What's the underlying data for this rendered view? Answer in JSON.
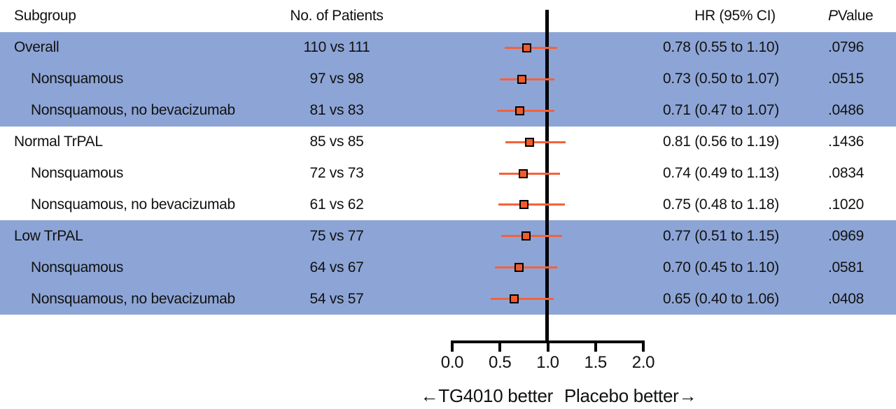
{
  "colors": {
    "band": "#8da5d6",
    "marker_fill": "#f15a29",
    "marker_border": "#000000",
    "ci_line": "#f3623a",
    "axis": "#000000",
    "text": "#111111"
  },
  "header": {
    "subgroup": "Subgroup",
    "patients": "No. of Patients",
    "hr": "HR (95% CI)",
    "p_italic": "P",
    "p_rest": " Value"
  },
  "chart_data": {
    "type": "forest",
    "title": "",
    "xlabel": "",
    "xlim": [
      0.0,
      2.0
    ],
    "reference_line": 1.0,
    "grid": false,
    "axis": {
      "ticks": [
        "0.0",
        "0.5",
        "1.0",
        "1.5",
        "2.0"
      ],
      "left_direction_label": "←TG4010 better",
      "right_direction_label": "Placebo better→"
    },
    "rows": [
      {
        "label": "Overall",
        "indent": false,
        "shaded": true,
        "patients": "110 vs 111",
        "hr": 0.78,
        "ci_low": 0.55,
        "ci_high": 1.1,
        "hr_text": "0.78 (0.55 to 1.10)",
        "p_value": ".0796"
      },
      {
        "label": "Nonsquamous",
        "indent": true,
        "shaded": true,
        "patients": "97 vs 98",
        "hr": 0.73,
        "ci_low": 0.5,
        "ci_high": 1.07,
        "hr_text": "0.73 (0.50 to 1.07)",
        "p_value": ".0515"
      },
      {
        "label": "Nonsquamous, no bevacizumab",
        "indent": true,
        "shaded": true,
        "patients": "81 vs 83",
        "hr": 0.71,
        "ci_low": 0.47,
        "ci_high": 1.07,
        "hr_text": "0.71 (0.47 to 1.07)",
        "p_value": ".0486"
      },
      {
        "label": "Normal TrPAL",
        "indent": false,
        "shaded": false,
        "patients": "85 vs 85",
        "hr": 0.81,
        "ci_low": 0.56,
        "ci_high": 1.19,
        "hr_text": "0.81 (0.56 to 1.19)",
        "p_value": ".1436"
      },
      {
        "label": "Nonsquamous",
        "indent": true,
        "shaded": false,
        "patients": "72 vs 73",
        "hr": 0.74,
        "ci_low": 0.49,
        "ci_high": 1.13,
        "hr_text": "0.74 (0.49 to 1.13)",
        "p_value": ".0834"
      },
      {
        "label": "Nonsquamous, no bevacizumab",
        "indent": true,
        "shaded": false,
        "patients": "61 vs 62",
        "hr": 0.75,
        "ci_low": 0.48,
        "ci_high": 1.18,
        "hr_text": "0.75 (0.48 to 1.18)",
        "p_value": ".1020"
      },
      {
        "label": "Low TrPAL",
        "indent": false,
        "shaded": true,
        "patients": "75 vs 77",
        "hr": 0.77,
        "ci_low": 0.51,
        "ci_high": 1.15,
        "hr_text": "0.77 (0.51 to 1.15)",
        "p_value": ".0969"
      },
      {
        "label": "Nonsquamous",
        "indent": true,
        "shaded": true,
        "patients": "64 vs 67",
        "hr": 0.7,
        "ci_low": 0.45,
        "ci_high": 1.1,
        "hr_text": "0.70 (0.45 to 1.10)",
        "p_value": ".0581"
      },
      {
        "label": "Nonsquamous, no bevacizumab",
        "indent": true,
        "shaded": true,
        "patients": "54 vs 57",
        "hr": 0.65,
        "ci_low": 0.4,
        "ci_high": 1.06,
        "hr_text": "0.65 (0.40 to 1.06)",
        "p_value": ".0408"
      }
    ]
  }
}
